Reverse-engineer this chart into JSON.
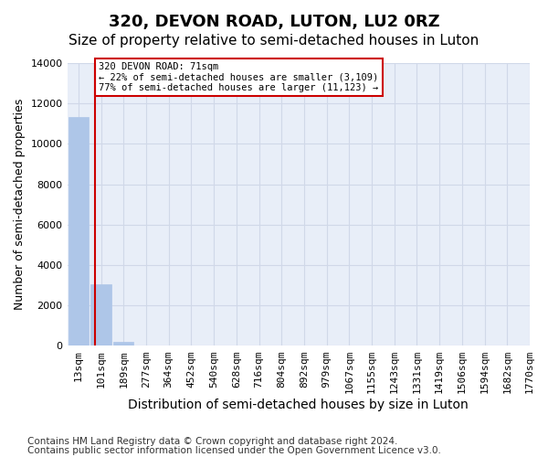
{
  "title": "320, DEVON ROAD, LUTON, LU2 0RZ",
  "subtitle": "Size of property relative to semi-detached houses in Luton",
  "xlabel": "Distribution of semi-detached houses by size in Luton",
  "ylabel": "Number of semi-detached properties",
  "footer_line1": "Contains HM Land Registry data © Crown copyright and database right 2024.",
  "footer_line2": "Contains public sector information licensed under the Open Government Licence v3.0.",
  "bin_labels": [
    "13sqm",
    "101sqm",
    "189sqm",
    "277sqm",
    "364sqm",
    "452sqm",
    "540sqm",
    "628sqm",
    "716sqm",
    "804sqm",
    "892sqm",
    "979sqm",
    "1067sqm",
    "1155sqm",
    "1243sqm",
    "1331sqm",
    "1419sqm",
    "1506sqm",
    "1594sqm",
    "1682sqm",
    "1770sqm"
  ],
  "bar_values": [
    11350,
    3050,
    200,
    0,
    0,
    0,
    0,
    0,
    0,
    0,
    0,
    0,
    0,
    0,
    0,
    0,
    0,
    0,
    0,
    0
  ],
  "bar_color": "#aec6e8",
  "bar_edge_color": "#aec6e8",
  "grid_color": "#d0d8e8",
  "background_color": "#e8eef8",
  "red_line_x": 0.72,
  "ylim": [
    0,
    14000
  ],
  "yticks": [
    0,
    2000,
    4000,
    6000,
    8000,
    10000,
    12000,
    14000
  ],
  "annotation_text": "320 DEVON ROAD: 71sqm\n← 22% of semi-detached houses are smaller (3,109)\n77% of semi-detached houses are larger (11,123) →",
  "annotation_box_color": "#ffffff",
  "annotation_edge_color": "#cc0000",
  "red_line_color": "#cc0000",
  "title_fontsize": 13,
  "subtitle_fontsize": 11,
  "axis_label_fontsize": 9,
  "tick_fontsize": 8,
  "footer_fontsize": 7.5
}
